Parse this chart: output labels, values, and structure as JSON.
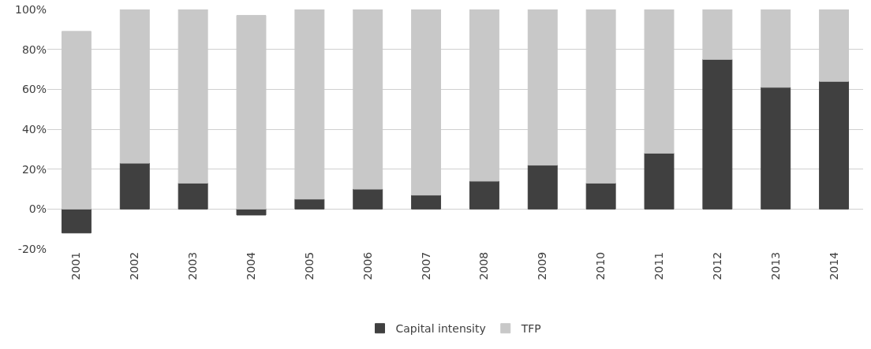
{
  "chart_data": {
    "type": "bar",
    "stacked": true,
    "categories": [
      "2001",
      "2002",
      "2003",
      "2004",
      "2005",
      "2006",
      "2007",
      "2008",
      "2009",
      "2010",
      "2011",
      "2012",
      "2013",
      "2014"
    ],
    "series": [
      {
        "name": "Capital intensity",
        "color": "#404040",
        "values": [
          -12,
          23,
          13,
          -3,
          5,
          10,
          7,
          14,
          22,
          13,
          28,
          75,
          61,
          64
        ]
      },
      {
        "name": "TFP",
        "color": "#c8c8c8",
        "values": [
          89,
          77,
          87,
          97,
          95,
          90,
          93,
          86,
          78,
          87,
          72,
          25,
          39,
          36
        ]
      }
    ],
    "ylim": [
      -20,
      100
    ],
    "yticks": [
      {
        "value": -20,
        "label": "-20%"
      },
      {
        "value": 0,
        "label": "0%"
      },
      {
        "value": 20,
        "label": "20%"
      },
      {
        "value": 40,
        "label": "40%"
      },
      {
        "value": 60,
        "label": "60%"
      },
      {
        "value": 80,
        "label": "80%"
      },
      {
        "value": 100,
        "label": "100%"
      }
    ],
    "grid": "y",
    "legend": "bottom"
  }
}
